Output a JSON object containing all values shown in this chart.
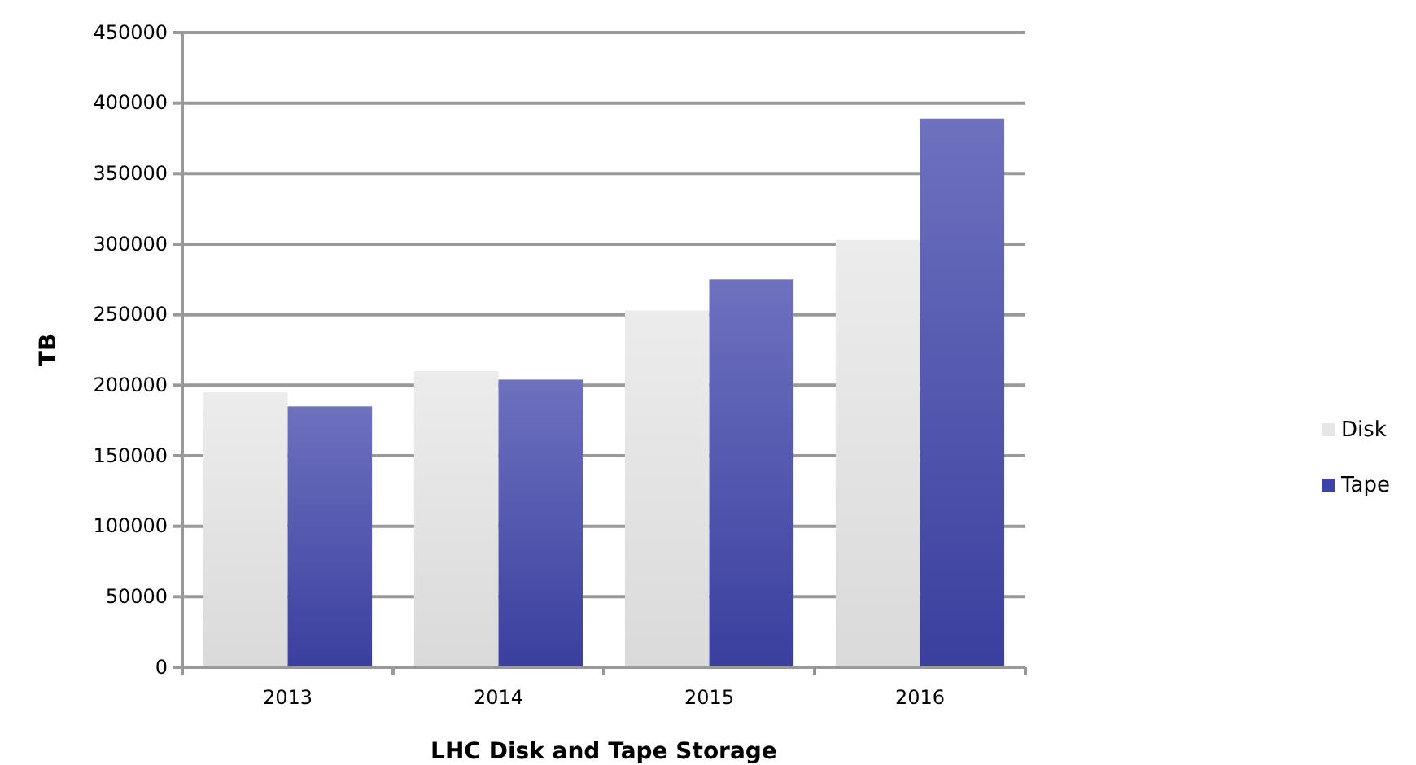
{
  "chart_data": {
    "type": "bar",
    "xlabel": "LHC Disk and Tape Storage",
    "ylabel": "TB",
    "categories": [
      "2013",
      "2014",
      "2015",
      "2016"
    ],
    "series": [
      {
        "name": "Disk",
        "color": "#e6e6e6",
        "values": [
          195000,
          210000,
          253000,
          303000
        ]
      },
      {
        "name": "Tape",
        "color": "#3d42a8",
        "values": [
          185000,
          204000,
          275000,
          389000
        ]
      }
    ],
    "ylim": [
      0,
      450000
    ],
    "yticks": [
      0,
      50000,
      100000,
      150000,
      200000,
      250000,
      300000,
      350000,
      400000,
      450000
    ],
    "grid": "y",
    "legend": "right"
  }
}
